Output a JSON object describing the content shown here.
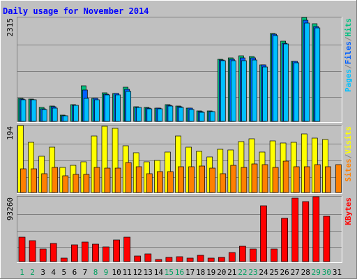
{
  "chart_data": {
    "type": "bar",
    "title": "Daily usage for November 2014",
    "categories": [
      "1",
      "2",
      "3",
      "4",
      "5",
      "6",
      "7",
      "8",
      "9",
      "10",
      "11",
      "12",
      "13",
      "14",
      "15",
      "16",
      "17",
      "18",
      "19",
      "20",
      "21",
      "22",
      "23",
      "24",
      "25",
      "26",
      "27",
      "28",
      "29",
      "30",
      "31"
    ],
    "weekend_days": [
      "1",
      "2",
      "8",
      "9",
      "15",
      "16",
      "22",
      "23",
      "29",
      "30"
    ],
    "panels": [
      {
        "id": "hits_files_pages",
        "ytick_label": "2315",
        "ymax": 2315,
        "ylabel_parts": [
          "Pages",
          "/",
          "Files",
          "/",
          "Hits"
        ],
        "ylabel_colors": [
          "#00c0ff",
          "#808080",
          "#0060ff",
          "#808080",
          "#00c080"
        ],
        "series": [
          {
            "name": "Hits",
            "color": "#00c080",
            "values": [
              511,
              498,
              308,
              338,
              134,
              378,
              787,
              512,
              630,
              626,
              762,
              325,
              307,
              297,
              370,
              343,
              302,
              226,
              236,
              1390,
              1407,
              1455,
              1440,
              1264,
              1963,
              1780,
              1340,
              2315,
              2170,
              null,
              null
            ]
          },
          {
            "name": "Files",
            "color": "#0060ff",
            "values": [
              493,
              487,
              285,
              326,
              128,
              364,
              697,
              511,
              612,
              622,
              709,
              318,
              302,
              289,
              365,
              334,
              293,
              220,
              220,
              1375,
              1380,
              1416,
              1416,
              1257,
              1945,
              1747,
              1330,
              2250,
              2118,
              null,
              null
            ]
          },
          {
            "name": "Pages",
            "color": "#00c0ff",
            "values": [
              478,
              474,
              265,
              297,
              119,
              352,
              512,
              482,
              585,
              591,
              668,
              305,
              287,
              273,
              349,
              318,
              266,
              196,
              210,
              1356,
              1358,
              1350,
              1370,
              1214,
              1909,
              1719,
              1305,
              2198,
              2076,
              null,
              null
            ]
          }
        ]
      },
      {
        "id": "visits_sites",
        "ytick_label": "194",
        "ymax": 194,
        "ylabel_parts": [
          "Sites",
          "/",
          "Visits"
        ],
        "ylabel_colors": [
          "#ff8000",
          "#808080",
          "#ffff00"
        ],
        "series": [
          {
            "name": "Visits",
            "color": "#ffff00",
            "values": [
              194,
              145,
              106,
              131,
              73,
              79,
              89,
              164,
              191,
              185,
              135,
              116,
              88,
              93,
              118,
              164,
              132,
              120,
              103,
              126,
              124,
              148,
              156,
              117,
              149,
              143,
              145,
              169,
              158,
              154,
              null
            ]
          },
          {
            "name": "Sites",
            "color": "#ff8000",
            "values": [
              69,
              69,
              55,
              73,
              48,
              52,
              52,
              72,
              70,
              70,
              86,
              74,
              55,
              60,
              60,
              74,
              74,
              77,
              70,
              55,
              78,
              72,
              83,
              81,
              72,
              90,
              74,
              74,
              81,
              75,
              80
            ]
          }
        ]
      },
      {
        "id": "kbytes",
        "ytick_label": "93260",
        "ymax": 93260,
        "ylabel_parts": [
          "KBytes"
        ],
        "ylabel_colors": [
          "#ff0000"
        ],
        "series": [
          {
            "name": "KBytes",
            "color": "#ff0000",
            "values": [
              35500,
              30000,
              18000,
              26000,
              5000,
              24500,
              28000,
              25000,
              21000,
              31000,
              35500,
              8500,
              11000,
              3000,
              6000,
              7000,
              5000,
              9000,
              5000,
              6000,
              13000,
              22000,
              18000,
              80000,
              18000,
              62000,
              91000,
              86000,
              93260,
              65000,
              null
            ]
          }
        ]
      }
    ]
  }
}
